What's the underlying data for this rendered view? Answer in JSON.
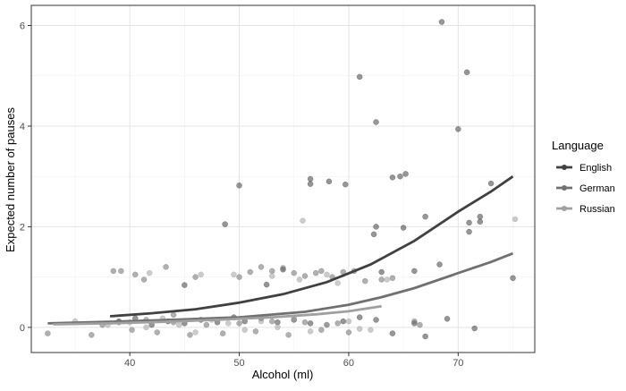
{
  "chart_data": {
    "type": "scatter",
    "title": "",
    "xlabel": "Alcohol (ml)",
    "ylabel": "Expected number of pauses",
    "xlim": [
      31.0,
      77.0
    ],
    "ylim": [
      -0.5,
      6.4
    ],
    "x_ticks": [
      40,
      50,
      60,
      70
    ],
    "y_ticks": [
      0,
      2,
      4,
      6
    ],
    "x_ticklabels": [
      "40",
      "50",
      "60",
      "70"
    ],
    "y_ticklabels": [
      "0",
      "2",
      "4",
      "6"
    ],
    "grid": true,
    "legend": {
      "title": "Language",
      "placement": "right",
      "items": [
        {
          "label": "English",
          "color": "#404040"
        },
        {
          "label": "German",
          "color": "#707070"
        },
        {
          "label": "Russian",
          "color": "#a0a0a0"
        }
      ]
    },
    "series": [
      {
        "name": "English",
        "color": "#404040",
        "fit_line": [
          [
            38.2,
            0.22
          ],
          [
            42,
            0.28
          ],
          [
            46,
            0.36
          ],
          [
            50,
            0.49
          ],
          [
            54,
            0.66
          ],
          [
            58,
            0.9
          ],
          [
            62,
            1.25
          ],
          [
            66,
            1.72
          ],
          [
            70,
            2.3
          ],
          [
            73,
            2.7
          ],
          [
            75,
            3.0
          ]
        ],
        "points": [
          [
            39,
            0.12
          ],
          [
            40.5,
            0.18
          ],
          [
            42,
            0.05
          ],
          [
            43.5,
            0.12
          ],
          [
            45,
            0.08
          ],
          [
            46.5,
            0.15
          ],
          [
            48,
            0.1
          ],
          [
            49.5,
            0.2
          ],
          [
            50.5,
            0.12
          ],
          [
            52,
            0.18
          ],
          [
            53.5,
            0.1
          ],
          [
            55,
            0.15
          ],
          [
            56.5,
            0.08
          ],
          [
            58,
            0.05
          ],
          [
            59.5,
            0.12
          ],
          [
            61,
            0.2
          ],
          [
            62.5,
            0.15
          ],
          [
            64,
            -0.12
          ],
          [
            66,
            0.08
          ],
          [
            67,
            -0.18
          ],
          [
            45,
            0.84
          ],
          [
            48.7,
            2.05
          ],
          [
            50,
            2.82
          ],
          [
            52.5,
            0.85
          ],
          [
            54,
            1.15
          ],
          [
            56.5,
            2.95
          ],
          [
            56.5,
            2.85
          ],
          [
            58.2,
            2.9
          ],
          [
            59.7,
            2.84
          ],
          [
            61,
            4.98
          ],
          [
            62.5,
            4.08
          ],
          [
            62.5,
            2.0
          ],
          [
            62.3,
            1.85
          ],
          [
            63,
            1.1
          ],
          [
            64,
            2.98
          ],
          [
            64.7,
            3.0
          ],
          [
            65,
            1.98
          ],
          [
            65.2,
            3.05
          ],
          [
            66,
            1.12
          ],
          [
            67,
            2.2
          ],
          [
            68.3,
            1.25
          ],
          [
            68.5,
            6.07
          ],
          [
            69,
            0.17
          ],
          [
            70,
            3.94
          ],
          [
            70.8,
            5.07
          ],
          [
            71,
            2.08
          ],
          [
            71,
            1.9
          ],
          [
            71.5,
            -0.02
          ],
          [
            72,
            2.2
          ],
          [
            72,
            2.1
          ],
          [
            73,
            2.86
          ],
          [
            75,
            0.98
          ]
        ]
      },
      {
        "name": "German",
        "color": "#707070",
        "fit_line": [
          [
            32.5,
            0.08
          ],
          [
            38,
            0.11
          ],
          [
            44,
            0.15
          ],
          [
            50,
            0.2
          ],
          [
            56,
            0.31
          ],
          [
            60,
            0.45
          ],
          [
            63,
            0.6
          ],
          [
            66,
            0.78
          ],
          [
            70,
            1.08
          ],
          [
            73,
            1.3
          ],
          [
            75,
            1.47
          ]
        ],
        "points": [
          [
            32.5,
            -0.12
          ],
          [
            36.5,
            -0.15
          ],
          [
            37.5,
            0.05
          ],
          [
            39,
            0.1
          ],
          [
            40.2,
            -0.05
          ],
          [
            41.5,
            0.15
          ],
          [
            42.5,
            -0.1
          ],
          [
            44,
            0.1
          ],
          [
            45.5,
            -0.15
          ],
          [
            47,
            0.05
          ],
          [
            48.5,
            -0.12
          ],
          [
            50,
            0.08
          ],
          [
            51.5,
            -0.08
          ],
          [
            53,
            0.12
          ],
          [
            54.5,
            -0.15
          ],
          [
            56,
            0.1
          ],
          [
            57.5,
            -0.05
          ],
          [
            59,
            0.08
          ],
          [
            60,
            -0.1
          ],
          [
            38.5,
            1.12
          ],
          [
            39.2,
            1.12
          ],
          [
            40.5,
            1.05
          ],
          [
            41.3,
            0.95
          ],
          [
            43.3,
            1.2
          ],
          [
            44,
            0.25
          ],
          [
            46,
            1.0
          ],
          [
            50,
            1.0
          ],
          [
            51,
            1.1
          ],
          [
            52,
            1.2
          ],
          [
            53,
            1.12
          ],
          [
            54,
            1.18
          ],
          [
            55,
            1.08
          ],
          [
            56,
            1.02
          ],
          [
            57,
            1.08
          ],
          [
            57.5,
            1.12
          ],
          [
            58.5,
            1.0
          ],
          [
            59.5,
            1.1
          ],
          [
            60.5,
            1.12
          ],
          [
            61.5,
            0.92
          ],
          [
            63,
            0.95
          ],
          [
            64,
            0.98
          ],
          [
            66,
            0.12
          ],
          [
            66.5,
            0.05
          ]
        ]
      },
      {
        "name": "Russian",
        "color": "#a0a0a0",
        "fit_line": [
          [
            33,
            0.06
          ],
          [
            38,
            0.08
          ],
          [
            43,
            0.11
          ],
          [
            48,
            0.15
          ],
          [
            53,
            0.2
          ],
          [
            57,
            0.26
          ],
          [
            60,
            0.32
          ],
          [
            63,
            0.42
          ]
        ],
        "points": [
          [
            35,
            0.12
          ],
          [
            38,
            0.05
          ],
          [
            40,
            0.1
          ],
          [
            41.5,
            0.0
          ],
          [
            43,
            0.18
          ],
          [
            44.5,
            0.05
          ],
          [
            46,
            -0.1
          ],
          [
            47.5,
            0.15
          ],
          [
            49,
            0.08
          ],
          [
            50.5,
            -0.05
          ],
          [
            52,
            0.12
          ],
          [
            53.5,
            0.0
          ],
          [
            55,
            0.2
          ],
          [
            56.5,
            -0.08
          ],
          [
            58,
            0.05
          ],
          [
            60,
            0.12
          ],
          [
            61,
            -0.03
          ],
          [
            62,
            -0.05
          ],
          [
            41.8,
            1.08
          ],
          [
            46.5,
            1.05
          ],
          [
            49.5,
            1.05
          ],
          [
            53,
            1.02
          ],
          [
            55.5,
            0.95
          ],
          [
            58,
            1.05
          ],
          [
            63.5,
            0.95
          ],
          [
            75.2,
            2.15
          ],
          [
            55.8,
            2.12
          ],
          [
            59,
            0.88
          ]
        ]
      }
    ]
  }
}
